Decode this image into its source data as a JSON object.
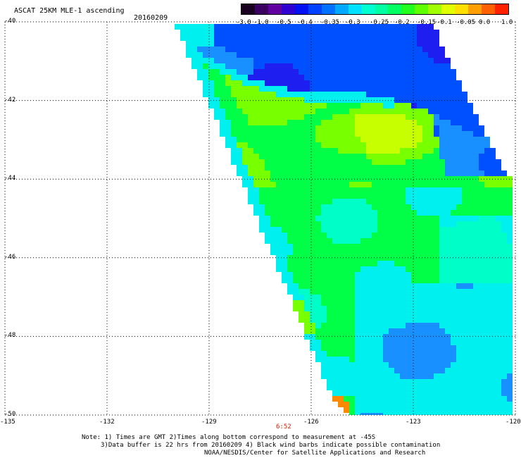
{
  "title": "ASCAT 25KM MLE-1 ascending",
  "date": "20160209",
  "colorbar": {
    "labels": [
      "-3.0",
      "-1.0",
      "-0.5",
      "-0.4",
      "-0.35",
      "-0.3",
      "-0.25",
      "-0.2",
      "-0.15",
      "-0.1",
      "-0.05",
      "0.0",
      "1.0"
    ],
    "colors": [
      "#1a0020",
      "#3a0060",
      "#6000a0",
      "#3000d0",
      "#0010f0",
      "#0040ff",
      "#0070ff",
      "#00a8ff",
      "#00e0ff",
      "#00ffd0",
      "#00ffa0",
      "#00ff60",
      "#20ff20",
      "#60ff00",
      "#a0ff00",
      "#e0ff00",
      "#ffe000",
      "#ffa000",
      "#ff6000",
      "#ff2000"
    ]
  },
  "axes": {
    "lat_labels": [
      "-40",
      "-42",
      "-44",
      "-46",
      "-48",
      "-50"
    ],
    "lon_labels": [
      "-135",
      "-132",
      "-129",
      "-126",
      "-123",
      "-120"
    ],
    "lat_range": [
      -50,
      -40
    ],
    "lon_range": [
      -135,
      -120
    ]
  },
  "time_label": "6:52",
  "notes": [
    "Note: 1) Times are GMT 2)Times along bottom correspond to measurement at -45S",
    "3)Data buffer is 22 hrs from 20160209 4) Black wind barbs indicate possible contamination",
    "NOAA/NESDIS/Center for Satellite Applications and Research"
  ],
  "swath_colors": {
    "deep_blue": "#1e1ef0",
    "blue": "#0050ff",
    "light_blue": "#1890ff",
    "cyan": "#00f0f0",
    "aqua": "#00ffc8",
    "green": "#00ff46",
    "lime": "#78ff00",
    "yellow_green": "#c8ff00",
    "orange": "#ff8a00"
  }
}
